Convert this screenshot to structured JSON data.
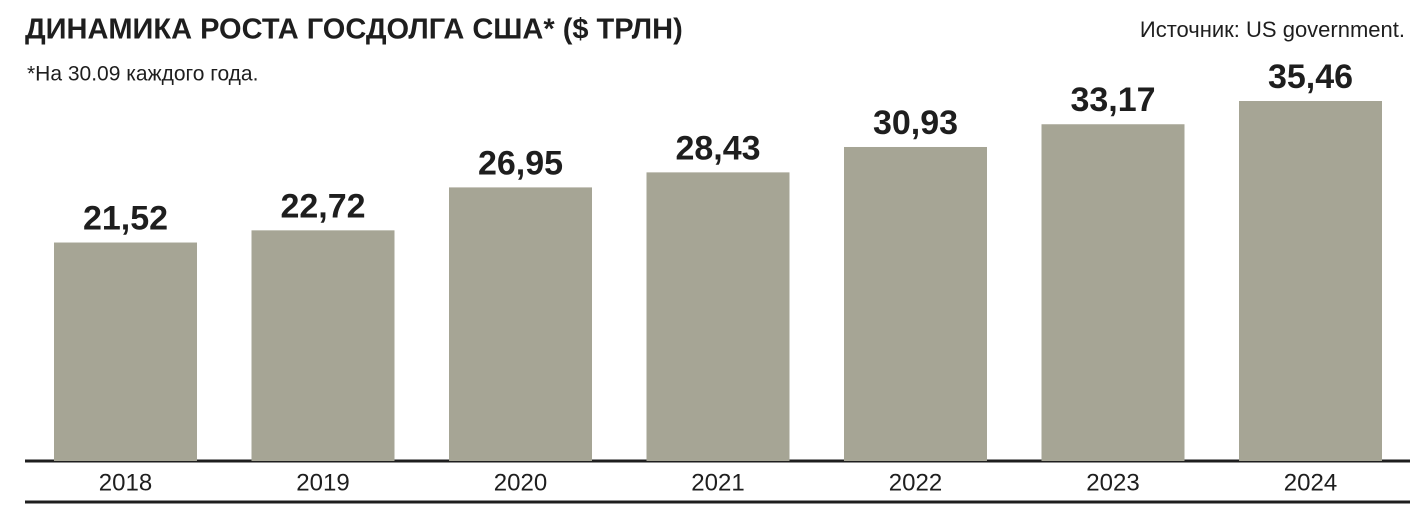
{
  "chart_data": {
    "type": "bar",
    "title": "ДИНАМИКА РОСТА ГОСДОЛГА США* ($ ТРЛН)",
    "subtitle": "*На 30.09 каждого года.",
    "source": "Источник: US government.",
    "categories": [
      "2018",
      "2019",
      "2020",
      "2021",
      "2022",
      "2023",
      "2024"
    ],
    "values": [
      21.52,
      22.72,
      26.95,
      28.43,
      30.93,
      33.17,
      35.46
    ],
    "value_labels": [
      "21,52",
      "22,72",
      "26,95",
      "28,43",
      "30,93",
      "33,17",
      "35,46"
    ],
    "color": "#a6a595"
  }
}
